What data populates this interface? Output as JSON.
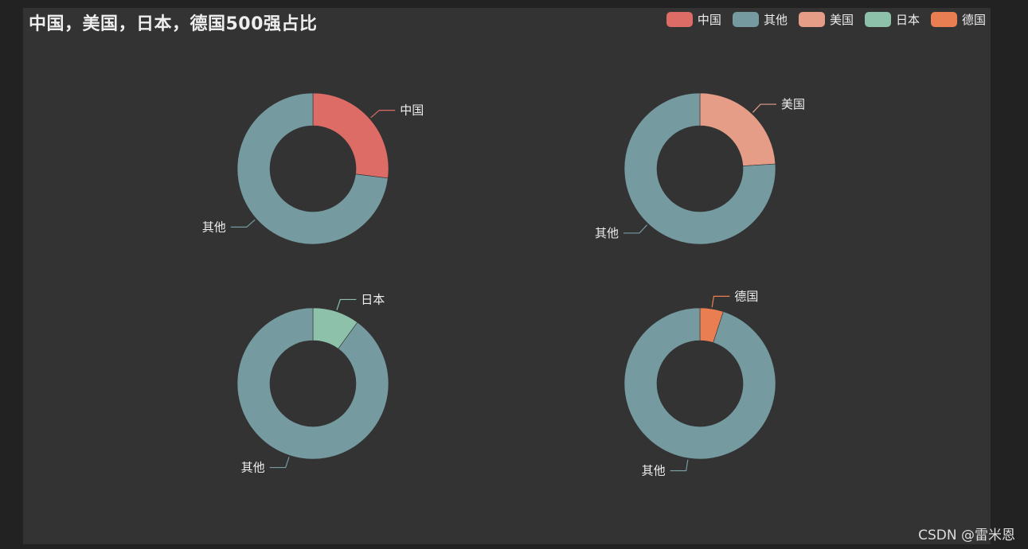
{
  "chart_data": {
    "type": "pie",
    "title": "中国，美国，日本，德国500强占比",
    "legend": {
      "placement": "top-right",
      "items": [
        {
          "label": "中国",
          "color": "#dd6b66"
        },
        {
          "label": "其他",
          "color": "#759aa0"
        },
        {
          "label": "美国",
          "color": "#e69d87"
        },
        {
          "label": "日本",
          "color": "#8dc1a9"
        },
        {
          "label": "德国",
          "color": "#ea7e53"
        }
      ]
    },
    "charts": [
      {
        "slices": [
          {
            "name": "中国",
            "value": 0.27,
            "color": "#dd6b66"
          },
          {
            "name": "其他",
            "value": 0.73,
            "color": "#759aa0"
          }
        ]
      },
      {
        "slices": [
          {
            "name": "美国",
            "value": 0.24,
            "color": "#e69d87"
          },
          {
            "name": "其他",
            "value": 0.76,
            "color": "#759aa0"
          }
        ]
      },
      {
        "slices": [
          {
            "name": "日本",
            "value": 0.1,
            "color": "#8dc1a9"
          },
          {
            "name": "其他",
            "value": 0.9,
            "color": "#759aa0"
          }
        ]
      },
      {
        "slices": [
          {
            "name": "德国",
            "value": 0.05,
            "color": "#ea7e53"
          },
          {
            "name": "其他",
            "value": 0.95,
            "color": "#759aa0"
          }
        ]
      }
    ]
  },
  "watermark": "CSDN @雷米恩"
}
